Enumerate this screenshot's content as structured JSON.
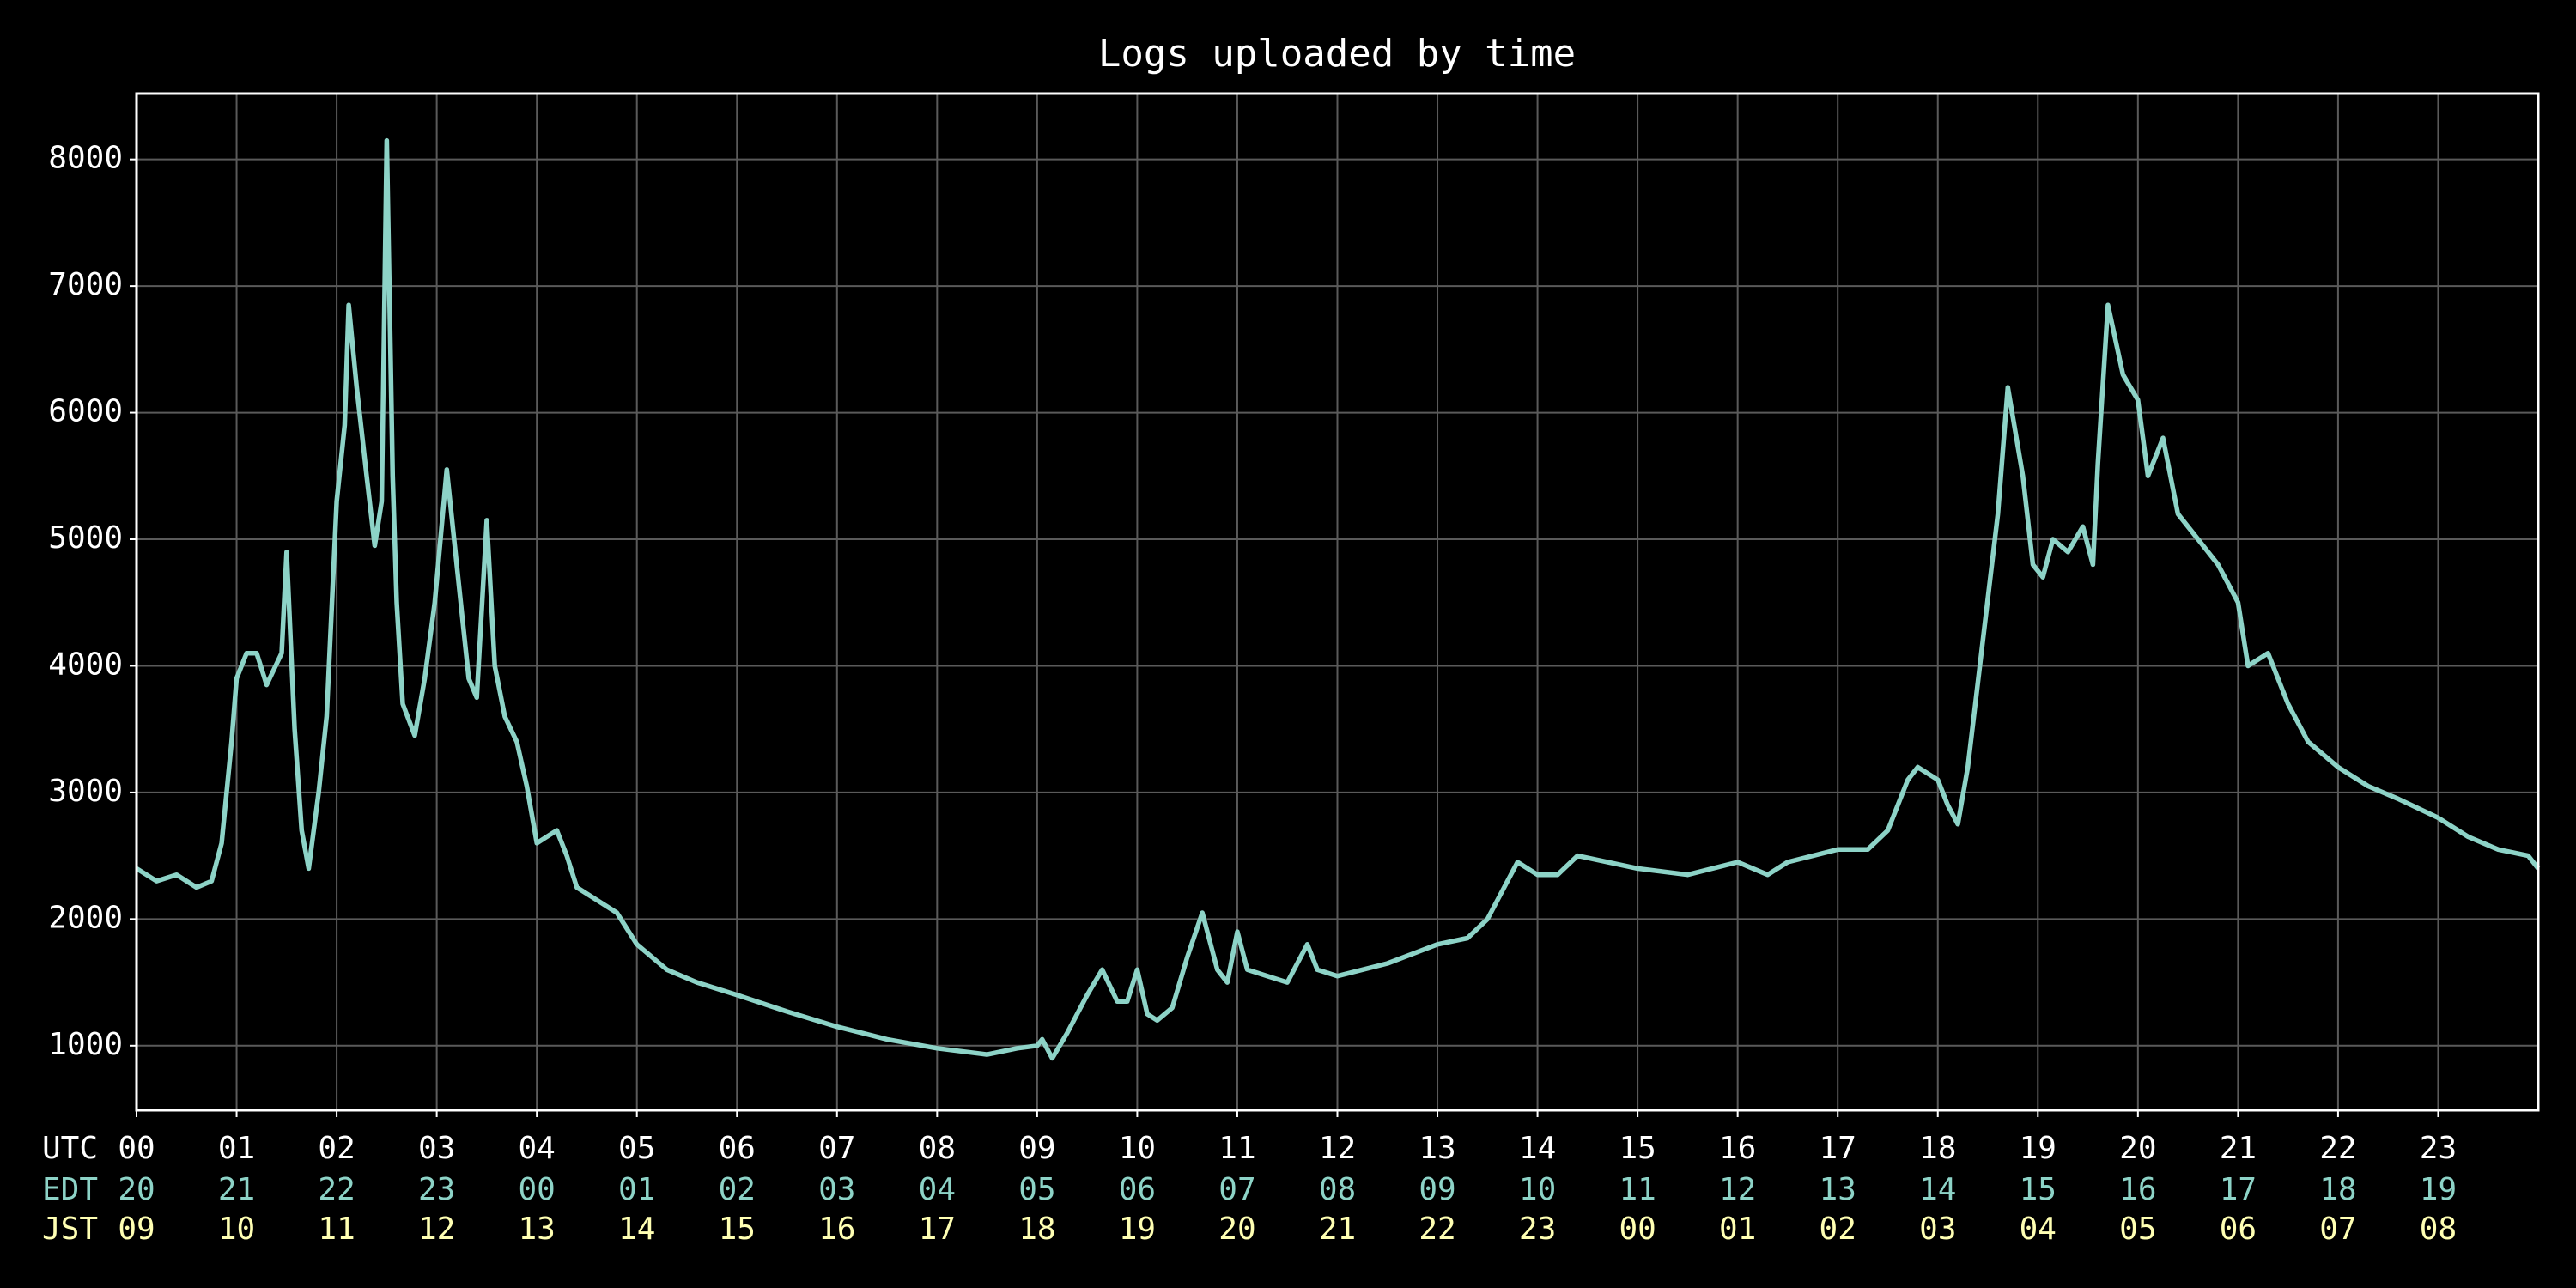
{
  "chart_data": {
    "type": "line",
    "title": "Logs uploaded by time",
    "x": [
      0,
      0.2,
      0.4,
      0.6,
      0.75,
      0.85,
      0.95,
      1.0,
      1.1,
      1.2,
      1.3,
      1.45,
      1.5,
      1.58,
      1.65,
      1.72,
      1.82,
      1.9,
      2.0,
      2.08,
      2.12,
      2.2,
      2.3,
      2.38,
      2.45,
      2.5,
      2.56,
      2.6,
      2.66,
      2.78,
      2.88,
      2.98,
      3.1,
      3.2,
      3.32,
      3.4,
      3.5,
      3.58,
      3.68,
      3.8,
      3.9,
      4.0,
      4.2,
      4.3,
      4.4,
      4.6,
      4.8,
      5.0,
      5.3,
      5.6,
      6.0,
      6.5,
      7.0,
      7.5,
      8.0,
      8.5,
      8.8,
      9.0,
      9.05,
      9.15,
      9.3,
      9.5,
      9.65,
      9.8,
      9.9,
      10.0,
      10.1,
      10.2,
      10.35,
      10.5,
      10.65,
      10.8,
      10.9,
      11.0,
      11.1,
      11.3,
      11.5,
      11.7,
      11.8,
      12.0,
      12.5,
      13.0,
      13.3,
      13.5,
      13.7,
      13.8,
      14.0,
      14.2,
      14.4,
      15.0,
      15.5,
      16.0,
      16.3,
      16.5,
      17.0,
      17.3,
      17.5,
      17.7,
      17.8,
      18.0,
      18.1,
      18.2,
      18.3,
      18.45,
      18.6,
      18.7,
      18.85,
      18.95,
      19.05,
      19.15,
      19.3,
      19.45,
      19.55,
      19.6,
      19.7,
      19.85,
      20.0,
      20.1,
      20.25,
      20.4,
      20.6,
      20.8,
      21.0,
      21.1,
      21.3,
      21.5,
      21.7,
      22.0,
      22.3,
      22.6,
      23.0,
      23.3,
      23.6,
      23.9,
      24.0
    ],
    "series": [
      {
        "name": "Logs",
        "color": "#8dd3c7",
        "values": [
          2400,
          2300,
          2350,
          2250,
          2300,
          2600,
          3400,
          3900,
          4100,
          4100,
          3850,
          4100,
          4900,
          3500,
          2700,
          2400,
          3000,
          3600,
          5300,
          5900,
          6850,
          6200,
          5500,
          4950,
          5300,
          8150,
          5500,
          4500,
          3700,
          3450,
          3900,
          4500,
          5550,
          4800,
          3900,
          3750,
          5150,
          4000,
          3600,
          3400,
          3050,
          2600,
          2700,
          2500,
          2250,
          2150,
          2050,
          1800,
          1600,
          1500,
          1400,
          1270,
          1150,
          1050,
          980,
          930,
          980,
          1000,
          1050,
          900,
          1100,
          1400,
          1600,
          1350,
          1350,
          1600,
          1250,
          1200,
          1300,
          1700,
          2050,
          1600,
          1500,
          1900,
          1600,
          1550,
          1500,
          1800,
          1600,
          1550,
          1650,
          1800,
          1850,
          2000,
          2300,
          2450,
          2350,
          2350,
          2500,
          2400,
          2350,
          2450,
          2350,
          2450,
          2550,
          2550,
          2700,
          3100,
          3200,
          3100,
          2900,
          2750,
          3200,
          4200,
          5200,
          6200,
          5500,
          4800,
          4700,
          5000,
          4900,
          5100,
          4800,
          5600,
          6850,
          6300,
          6100,
          5500,
          5800,
          5200,
          5000,
          4800,
          4500,
          4000,
          4100,
          3700,
          3400,
          3200,
          3050,
          2950,
          2800,
          2650,
          2550,
          2500,
          2400
        ]
      }
    ],
    "xlim": [
      0,
      24
    ],
    "xticks": [
      0,
      1,
      2,
      3,
      4,
      5,
      6,
      7,
      8,
      9,
      10,
      11,
      12,
      13,
      14,
      15,
      16,
      17,
      18,
      19,
      20,
      21,
      22,
      23
    ],
    "x_tick_rows": [
      {
        "name": "UTC",
        "color": "#ffffff",
        "labels": [
          "00",
          "01",
          "02",
          "03",
          "04",
          "05",
          "06",
          "07",
          "08",
          "09",
          "10",
          "11",
          "12",
          "13",
          "14",
          "15",
          "16",
          "17",
          "18",
          "19",
          "20",
          "21",
          "22",
          "23"
        ]
      },
      {
        "name": "EDT",
        "color": "#8dd3c7",
        "labels": [
          "20",
          "21",
          "22",
          "23",
          "00",
          "01",
          "02",
          "03",
          "04",
          "05",
          "06",
          "07",
          "08",
          "09",
          "10",
          "11",
          "12",
          "13",
          "14",
          "15",
          "16",
          "17",
          "18",
          "19"
        ]
      },
      {
        "name": "JST",
        "color": "#ffffb3",
        "labels": [
          "09",
          "10",
          "11",
          "12",
          "13",
          "14",
          "15",
          "16",
          "17",
          "18",
          "19",
          "20",
          "21",
          "22",
          "23",
          "00",
          "01",
          "02",
          "03",
          "04",
          "05",
          "06",
          "07",
          "08"
        ]
      }
    ],
    "ylim": [
      490,
      8520
    ],
    "yticks": [
      1000,
      2000,
      3000,
      4000,
      5000,
      6000,
      7000,
      8000
    ],
    "grid": true
  }
}
